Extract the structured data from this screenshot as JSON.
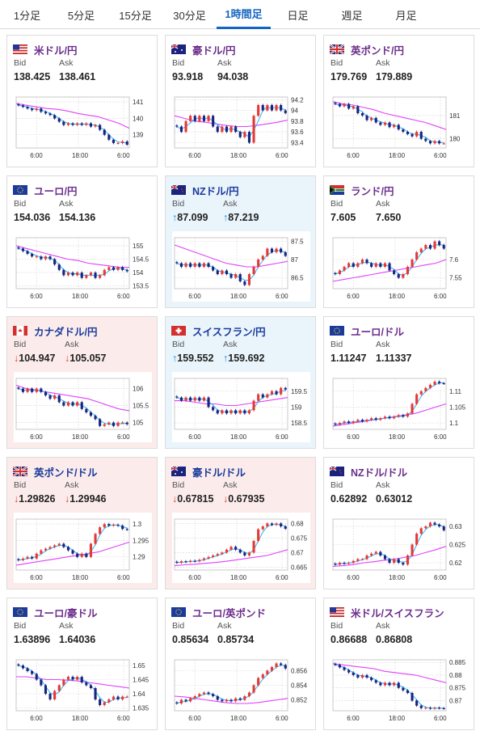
{
  "tabs": [
    {
      "label": "1分足",
      "active": false
    },
    {
      "label": "5分足",
      "active": false
    },
    {
      "label": "15分足",
      "active": false
    },
    {
      "label": "30分足",
      "active": false
    },
    {
      "label": "1時間足",
      "active": true
    },
    {
      "label": "日足",
      "active": false
    },
    {
      "label": "週足",
      "active": false
    },
    {
      "label": "月足",
      "active": false
    }
  ],
  "labels": {
    "bid": "Bid",
    "ask": "Ask"
  },
  "colors": {
    "accent": "#1565c0",
    "pair_name": "#6b2d8c",
    "candle_up": "#e53935",
    "candle_down": "#1a237e",
    "ma_long": "#e040fb",
    "ma_short": "#29b6f6",
    "card_up_bg": "#e9f4fb",
    "card_down_bg": "#fbeceb"
  },
  "cards": [
    {
      "pair": "米ドル/円",
      "flag": "us",
      "bid": "138.425",
      "ask": "138.461",
      "trend": "none",
      "chart_data": {
        "type": "candlestick",
        "x_ticks": [
          "6:00",
          "18:00",
          "6:00"
        ],
        "y_ticks": [
          "141",
          "140",
          "139"
        ],
        "ylim": [
          138.2,
          141.3
        ],
        "path": [
          140.8,
          140.7,
          140.6,
          140.5,
          140.6,
          140.4,
          140.3,
          140.2,
          140.0,
          139.8,
          139.6,
          139.7,
          139.6,
          139.7,
          139.6,
          139.7,
          139.5,
          139.6,
          139.3,
          139.0,
          138.7,
          138.5,
          138.5,
          138.6,
          138.4
        ],
        "ma_long": [
          140.9,
          140.8,
          140.7,
          140.6,
          140.55,
          140.45,
          140.3,
          140.2,
          140.1,
          139.9,
          139.7,
          139.4
        ]
      }
    },
    {
      "pair": "豪ドル/円",
      "flag": "au",
      "bid": "93.918",
      "ask": "94.038",
      "trend": "none",
      "chart_data": {
        "type": "candlestick",
        "x_ticks": [
          "6:00",
          "18:00",
          "6:00"
        ],
        "y_ticks": [
          "94.2",
          "94",
          "93.8",
          "93.6",
          "93.4"
        ],
        "ylim": [
          93.3,
          94.25
        ],
        "path": [
          93.7,
          93.6,
          93.8,
          93.9,
          93.8,
          93.9,
          93.8,
          93.9,
          93.7,
          93.6,
          93.7,
          93.6,
          93.7,
          93.6,
          93.5,
          93.6,
          93.4,
          93.9,
          94.1,
          94.0,
          94.1,
          94.0,
          94.1,
          94.0,
          93.95
        ],
        "ma_long": [
          93.9,
          93.85,
          93.8,
          93.78,
          93.75,
          93.72,
          93.7,
          93.7,
          93.72,
          93.75,
          93.78,
          93.82
        ]
      }
    },
    {
      "pair": "英ポンド/円",
      "flag": "uk",
      "bid": "179.769",
      "ask": "179.889",
      "trend": "none",
      "chart_data": {
        "type": "candlestick",
        "x_ticks": [
          "6:00",
          "18:00",
          "6:00"
        ],
        "y_ticks": [
          "181",
          "180"
        ],
        "ylim": [
          179.6,
          181.8
        ],
        "path": [
          181.5,
          181.4,
          181.5,
          181.3,
          181.4,
          181.1,
          181.0,
          180.8,
          180.9,
          180.7,
          180.6,
          180.7,
          180.5,
          180.6,
          180.4,
          180.3,
          180.2,
          180.1,
          180.3,
          180.0,
          179.9,
          179.8,
          179.9,
          179.8,
          179.8
        ],
        "ma_long": [
          181.6,
          181.5,
          181.45,
          181.35,
          181.25,
          181.1,
          181.0,
          180.9,
          180.8,
          180.7,
          180.55,
          180.4
        ]
      }
    },
    {
      "pair": "ユーロ/円",
      "flag": "eu",
      "bid": "154.036",
      "ask": "154.136",
      "trend": "none",
      "chart_data": {
        "type": "candlestick",
        "x_ticks": [
          "6:00",
          "18:00",
          "6:00"
        ],
        "y_ticks": [
          "155",
          "154.5",
          "154",
          "153.5"
        ],
        "ylim": [
          153.4,
          155.3
        ],
        "path": [
          154.9,
          154.8,
          154.7,
          154.6,
          154.6,
          154.5,
          154.6,
          154.5,
          154.3,
          154.1,
          153.9,
          154.0,
          153.9,
          154.0,
          153.8,
          153.9,
          154.0,
          153.8,
          153.9,
          154.1,
          154.2,
          154.1,
          154.2,
          154.1,
          154.05
        ],
        "ma_long": [
          155.0,
          154.9,
          154.8,
          154.7,
          154.6,
          154.5,
          154.45,
          154.35,
          154.3,
          154.25,
          154.2,
          154.2
        ]
      }
    },
    {
      "pair": "NZドル/円",
      "flag": "nz",
      "bid": "87.099",
      "ask": "87.219",
      "trend": "up",
      "chart_data": {
        "type": "candlestick",
        "x_ticks": [
          "6:00",
          "18:00",
          "6:00"
        ],
        "y_ticks": [
          "87.5",
          "87",
          "86.5"
        ],
        "ylim": [
          86.2,
          87.6
        ],
        "path": [
          86.9,
          86.8,
          86.9,
          86.8,
          86.9,
          86.8,
          86.9,
          86.8,
          86.7,
          86.6,
          86.7,
          86.6,
          86.5,
          86.6,
          86.4,
          86.3,
          86.6,
          86.8,
          87.0,
          87.1,
          87.3,
          87.2,
          87.3,
          87.2,
          87.1
        ],
        "ma_long": [
          87.4,
          87.3,
          87.2,
          87.1,
          87.0,
          86.9,
          86.85,
          86.8,
          86.8,
          86.85,
          86.9,
          86.95
        ]
      }
    },
    {
      "pair": "ランド/円",
      "flag": "za",
      "bid": "7.605",
      "ask": "7.650",
      "trend": "none",
      "chart_data": {
        "type": "candlestick",
        "x_ticks": [
          "6:00",
          "18:00",
          "6:00"
        ],
        "y_ticks": [
          "7.6",
          "7.55"
        ],
        "ylim": [
          7.52,
          7.66
        ],
        "path": [
          7.56,
          7.57,
          7.58,
          7.59,
          7.58,
          7.59,
          7.6,
          7.59,
          7.58,
          7.59,
          7.58,
          7.59,
          7.57,
          7.56,
          7.55,
          7.56,
          7.58,
          7.6,
          7.62,
          7.63,
          7.64,
          7.63,
          7.65,
          7.64,
          7.63
        ],
        "ma_long": [
          7.54,
          7.545,
          7.55,
          7.555,
          7.56,
          7.565,
          7.57,
          7.575,
          7.58,
          7.585,
          7.59,
          7.6
        ]
      }
    },
    {
      "pair": "カナダドル/円",
      "flag": "ca",
      "bid": "104.947",
      "ask": "105.057",
      "trend": "down",
      "chart_data": {
        "type": "candlestick",
        "x_ticks": [
          "6:00",
          "18:00",
          "6:00"
        ],
        "y_ticks": [
          "106",
          "105.5",
          "105"
        ],
        "ylim": [
          104.8,
          106.3
        ],
        "path": [
          106.0,
          105.9,
          106.0,
          105.9,
          106.0,
          105.9,
          105.8,
          105.7,
          105.8,
          105.6,
          105.5,
          105.6,
          105.5,
          105.6,
          105.4,
          105.3,
          105.2,
          105.1,
          104.9,
          104.95,
          105.0,
          104.9,
          105.0,
          105.0,
          104.95
        ],
        "ma_long": [
          106.1,
          106.0,
          105.95,
          105.9,
          105.85,
          105.8,
          105.75,
          105.7,
          105.6,
          105.5,
          105.4,
          105.35
        ]
      }
    },
    {
      "pair": "スイスフラン/円",
      "flag": "ch",
      "bid": "159.552",
      "ask": "159.692",
      "trend": "up",
      "chart_data": {
        "type": "candlestick",
        "x_ticks": [
          "6:00",
          "18:00",
          "6:00"
        ],
        "y_ticks": [
          "159.5",
          "159",
          "158.5"
        ],
        "ylim": [
          158.3,
          159.9
        ],
        "path": [
          159.3,
          159.2,
          159.3,
          159.2,
          159.3,
          159.2,
          159.3,
          159.0,
          158.9,
          158.8,
          158.9,
          158.8,
          158.9,
          158.8,
          158.9,
          158.8,
          158.9,
          159.2,
          159.4,
          159.3,
          159.4,
          159.5,
          159.4,
          159.6,
          159.55
        ],
        "ma_long": [
          159.2,
          159.2,
          159.15,
          159.1,
          159.1,
          159.05,
          159.05,
          159.1,
          159.15,
          159.2,
          159.25,
          159.3
        ]
      }
    },
    {
      "pair": "ユーロ/ドル",
      "flag": "eu",
      "bid": "1.11247",
      "ask": "1.11337",
      "trend": "none",
      "chart_data": {
        "type": "candlestick",
        "x_ticks": [
          "6:00",
          "18:00",
          "6:00"
        ],
        "y_ticks": [
          "1.11",
          "1.105",
          "1.1"
        ],
        "ylim": [
          1.098,
          1.114
        ],
        "path": [
          1.0995,
          1.1,
          1.1005,
          1.1,
          1.1005,
          1.101,
          1.1005,
          1.101,
          1.1015,
          1.101,
          1.1015,
          1.102,
          1.1015,
          1.102,
          1.1025,
          1.102,
          1.103,
          1.106,
          1.109,
          1.11,
          1.111,
          1.112,
          1.113,
          1.1125,
          1.1124
        ],
        "ma_long": [
          1.099,
          1.0995,
          1.1,
          1.1005,
          1.101,
          1.1015,
          1.102,
          1.1025,
          1.103,
          1.104,
          1.105,
          1.106
        ]
      }
    },
    {
      "pair": "英ポンド/ドル",
      "flag": "uk",
      "bid": "1.29826",
      "ask": "1.29946",
      "trend": "down",
      "chart_data": {
        "type": "candlestick",
        "x_ticks": [
          "6:00",
          "18:00",
          "6:00"
        ],
        "y_ticks": [
          "1.3",
          "1.295",
          "1.29"
        ],
        "ylim": [
          1.286,
          1.3015
        ],
        "path": [
          1.289,
          1.2895,
          1.29,
          1.2895,
          1.291,
          1.292,
          1.2925,
          1.293,
          1.2935,
          1.294,
          1.293,
          1.292,
          1.291,
          1.29,
          1.291,
          1.29,
          1.294,
          1.297,
          1.299,
          1.3,
          1.2995,
          1.2998,
          1.2995,
          1.2985,
          1.2983
        ],
        "ma_long": [
          1.2875,
          1.288,
          1.2885,
          1.289,
          1.2895,
          1.29,
          1.2905,
          1.291,
          1.2915,
          1.2925,
          1.2935,
          1.2945
        ]
      }
    },
    {
      "pair": "豪ドル/ドル",
      "flag": "au",
      "bid": "0.67815",
      "ask": "0.67935",
      "trend": "down",
      "chart_data": {
        "type": "candlestick",
        "x_ticks": [
          "6:00",
          "18:00",
          "6:00"
        ],
        "y_ticks": [
          "0.68",
          "0.675",
          "0.67",
          "0.665"
        ],
        "ylim": [
          0.664,
          0.6815
        ],
        "path": [
          0.6665,
          0.667,
          0.6668,
          0.6672,
          0.667,
          0.6675,
          0.668,
          0.6685,
          0.669,
          0.6695,
          0.67,
          0.671,
          0.672,
          0.671,
          0.67,
          0.669,
          0.67,
          0.674,
          0.678,
          0.679,
          0.68,
          0.6795,
          0.68,
          0.679,
          0.6782
        ],
        "ma_long": [
          0.6655,
          0.6658,
          0.666,
          0.6663,
          0.6666,
          0.667,
          0.6675,
          0.668,
          0.6685,
          0.669,
          0.67,
          0.671
        ]
      }
    },
    {
      "pair": "NZドル/ドル",
      "flag": "nz",
      "bid": "0.62892",
      "ask": "0.63012",
      "trend": "none",
      "chart_data": {
        "type": "candlestick",
        "x_ticks": [
          "6:00",
          "18:00",
          "6:00"
        ],
        "y_ticks": [
          "0.63",
          "0.625",
          "0.62"
        ],
        "ylim": [
          0.618,
          0.632
        ],
        "path": [
          0.6195,
          0.62,
          0.6198,
          0.62,
          0.6205,
          0.621,
          0.621,
          0.622,
          0.6225,
          0.623,
          0.622,
          0.621,
          0.62,
          0.621,
          0.62,
          0.6195,
          0.622,
          0.625,
          0.628,
          0.6295,
          0.63,
          0.631,
          0.6305,
          0.63,
          0.6289
        ],
        "ma_long": [
          0.619,
          0.6192,
          0.6195,
          0.62,
          0.6203,
          0.6207,
          0.621,
          0.6215,
          0.622,
          0.6228,
          0.6236,
          0.6245
        ]
      }
    },
    {
      "pair": "ユーロ/豪ドル",
      "flag": "eu",
      "bid": "1.63896",
      "ask": "1.64036",
      "trend": "none",
      "chart_data": {
        "type": "candlestick",
        "x_ticks": [
          "6:00",
          "18:00",
          "6:00"
        ],
        "y_ticks": [
          "1.65",
          "1.645",
          "1.64",
          "1.635"
        ],
        "ylim": [
          1.634,
          1.652
        ],
        "path": [
          1.65,
          1.649,
          1.648,
          1.647,
          1.645,
          1.643,
          1.64,
          1.638,
          1.641,
          1.643,
          1.645,
          1.646,
          1.645,
          1.646,
          1.644,
          1.643,
          1.642,
          1.638,
          1.636,
          1.637,
          1.638,
          1.639,
          1.638,
          1.639,
          1.639
        ],
        "ma_long": [
          1.646,
          1.646,
          1.6455,
          1.645,
          1.645,
          1.6448,
          1.6445,
          1.644,
          1.6435,
          1.643,
          1.6425,
          1.642
        ]
      }
    },
    {
      "pair": "ユーロ/英ポンド",
      "flag": "eu",
      "bid": "0.85634",
      "ask": "0.85734",
      "trend": "none",
      "chart_data": {
        "type": "candlestick",
        "x_ticks": [
          "6:00",
          "18:00",
          "6:00"
        ],
        "y_ticks": [
          "0.856",
          "0.854",
          "0.852"
        ],
        "ylim": [
          0.8505,
          0.8575
        ],
        "path": [
          0.8515,
          0.852,
          0.8518,
          0.8522,
          0.8525,
          0.8528,
          0.853,
          0.8528,
          0.8525,
          0.852,
          0.8518,
          0.852,
          0.8518,
          0.8522,
          0.852,
          0.8525,
          0.853,
          0.854,
          0.855,
          0.8555,
          0.856,
          0.8565,
          0.857,
          0.8568,
          0.8563
        ],
        "ma_long": [
          0.8525,
          0.8524,
          0.8522,
          0.852,
          0.8518,
          0.8516,
          0.8515,
          0.8515,
          0.8516,
          0.8518,
          0.852,
          0.8522
        ]
      }
    },
    {
      "pair": "米ドル/スイスフラン",
      "flag": "us",
      "bid": "0.86688",
      "ask": "0.86808",
      "trend": "none",
      "chart_data": {
        "type": "candlestick",
        "x_ticks": [
          "6:00",
          "18:00",
          "6:00"
        ],
        "y_ticks": [
          "0.885",
          "0.88",
          "0.875",
          "0.87"
        ],
        "ylim": [
          0.866,
          0.886
        ],
        "path": [
          0.884,
          0.883,
          0.882,
          0.881,
          0.88,
          0.879,
          0.88,
          0.879,
          0.878,
          0.877,
          0.876,
          0.877,
          0.876,
          0.877,
          0.875,
          0.874,
          0.873,
          0.87,
          0.868,
          0.867,
          0.8672,
          0.8668,
          0.8672,
          0.867,
          0.8669
        ],
        "ma_long": [
          0.8845,
          0.884,
          0.8835,
          0.883,
          0.8825,
          0.8815,
          0.881,
          0.8805,
          0.88,
          0.879,
          0.878,
          0.877
        ]
      }
    }
  ]
}
